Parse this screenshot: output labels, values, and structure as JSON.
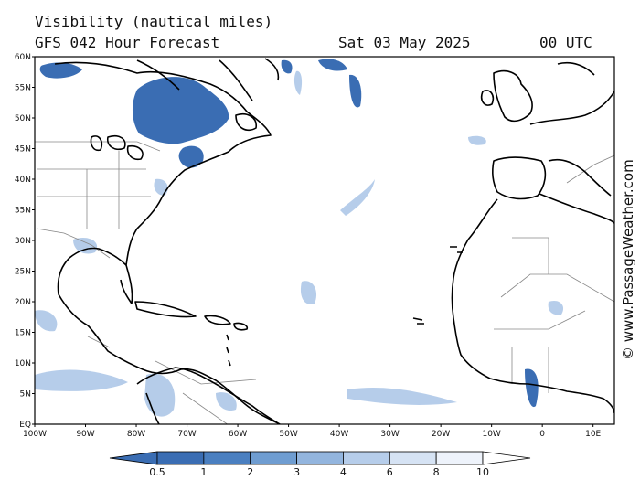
{
  "header": {
    "title": "Visibility (nautical miles)",
    "model_forecast": "GFS 042 Hour Forecast",
    "date": "Sat 03 May 2025",
    "time": "00 UTC"
  },
  "axes": {
    "lat_labels": [
      "60N",
      "55N",
      "50N",
      "45N",
      "40N",
      "35N",
      "30N",
      "25N",
      "20N",
      "15N",
      "10N",
      "5N",
      "EQ"
    ],
    "lon_labels": [
      "100W",
      "90W",
      "80W",
      "70W",
      "60W",
      "50W",
      "40W",
      "30W",
      "20W",
      "10W",
      "0",
      "10E"
    ]
  },
  "colorbar": {
    "labels": [
      "0.5",
      "1",
      "2",
      "3",
      "4",
      "6",
      "8",
      "10"
    ],
    "colors": [
      "#3a6db3",
      "#4a7fc0",
      "#6f9dd1",
      "#93b5de",
      "#b6cdea",
      "#d6e3f4",
      "#eef3fb"
    ]
  },
  "colors": {
    "land_outline": "#000000",
    "borders": "#888888",
    "low_visibility": "#3a6db3",
    "fog_light": "#a9c4e6"
  },
  "credit": "© www.PassageWeather.com"
}
